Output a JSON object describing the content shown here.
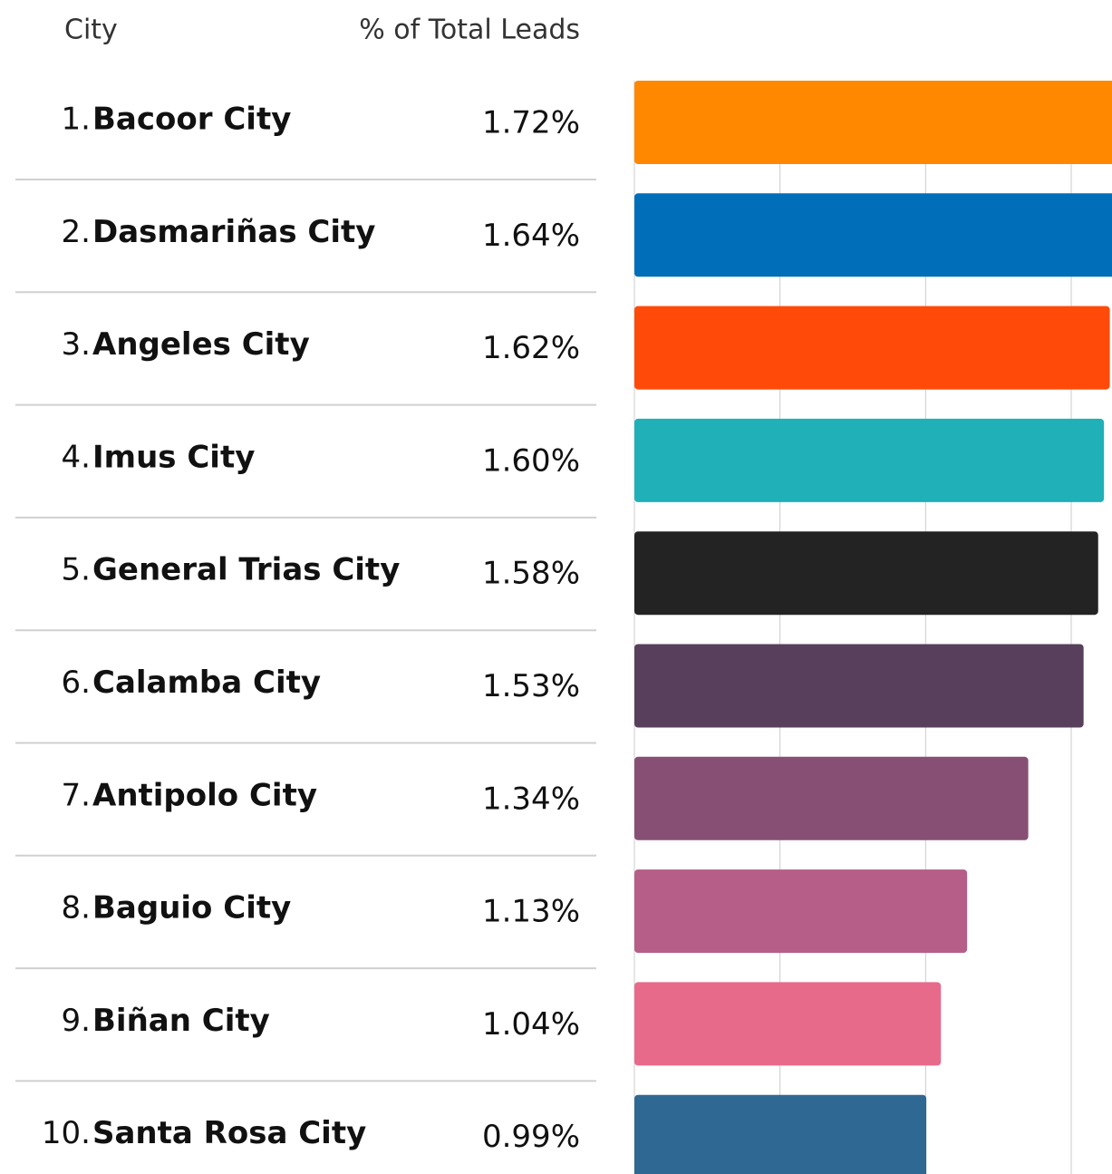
{
  "chart_data": {
    "type": "bar",
    "orientation": "horizontal",
    "headers": [
      "City",
      "% of Total Leads"
    ],
    "ranks": [
      "1.",
      "2.",
      "3.",
      "4.",
      "5.",
      "6.",
      "7.",
      "8.",
      "9.",
      "10."
    ],
    "categories": [
      "Bacoor City",
      "Dasmariñas City",
      "Angeles City",
      "Imus City",
      "General Trias City",
      "Calamba City",
      "Antipolo City",
      "Baguio City",
      "Biñan City",
      "Santa Rosa City"
    ],
    "values": [
      1.72,
      1.64,
      1.62,
      1.6,
      1.58,
      1.53,
      1.34,
      1.13,
      1.04,
      0.99
    ],
    "value_labels": [
      "1.72%",
      "1.64%",
      "1.62%",
      "1.60%",
      "1.58%",
      "1.53%",
      "1.34%",
      "1.13%",
      "1.04%",
      "0.99%"
    ],
    "colors": [
      "#ff8800",
      "#006eb8",
      "#ff4a0a",
      "#1fb0b8",
      "#232323",
      "#583f5b",
      "#874f74",
      "#b65e87",
      "#e86a8b",
      "#2f6893"
    ],
    "xlim": [
      0,
      1.64
    ],
    "xticks": [
      0,
      0.5,
      1,
      1.5
    ],
    "grid": true
  }
}
